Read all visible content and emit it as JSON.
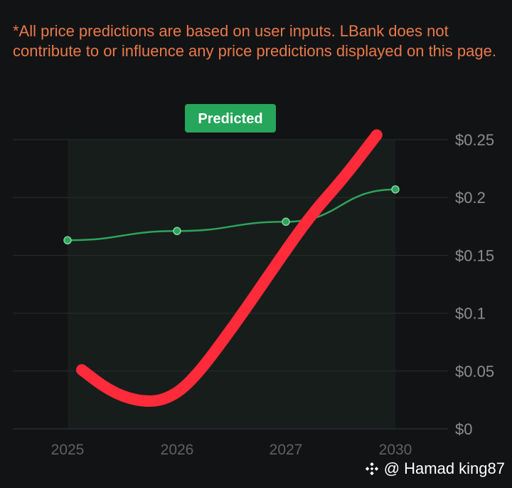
{
  "disclaimer": "*All price predictions are based on user inputs. LBank does not contribute to or influence any price predictions displayed on this page.",
  "watermark": {
    "icon": "binance-logo-icon",
    "text": "@ Hamad king87"
  },
  "colors": {
    "background": "#121314",
    "disclaimer": "#e8794a",
    "predicted_band": "#171d1a",
    "gridline": "#2a2c2e",
    "series_line": "#2fa35c",
    "badge": "#26a65b",
    "annotation_stroke": "#ff2a3a"
  },
  "chart_data": {
    "type": "line",
    "badge": "Predicted",
    "x": [
      2025,
      2026,
      2027,
      2030
    ],
    "x_tick_labels": [
      "2025",
      "2026",
      "2027",
      "2030"
    ],
    "series": [
      {
        "values": [
          0.163,
          0.171,
          0.179,
          0.207
        ]
      }
    ],
    "y_tick_labels": [
      "$0.25",
      "$0.2",
      "$0.15",
      "$0.1",
      "$0.05",
      "$0"
    ],
    "y_ticks": [
      0.25,
      0.2,
      0.15,
      0.1,
      0.05,
      0
    ],
    "ylim": [
      0,
      0.25
    ],
    "y_axis_position": "right",
    "grid": true,
    "annotation": {
      "type": "hand-drawn freehand curve",
      "color": "red",
      "points": [
        [
          0.0,
          0.051
        ],
        [
          0.25,
          0.033
        ],
        [
          0.5,
          0.024
        ],
        [
          0.75,
          0.024
        ],
        [
          1.0,
          0.04
        ],
        [
          1.4,
          0.09
        ],
        [
          1.8,
          0.145
        ],
        [
          2.1,
          0.185
        ],
        [
          2.4,
          0.217
        ],
        [
          2.7,
          0.254
        ]
      ]
    }
  }
}
